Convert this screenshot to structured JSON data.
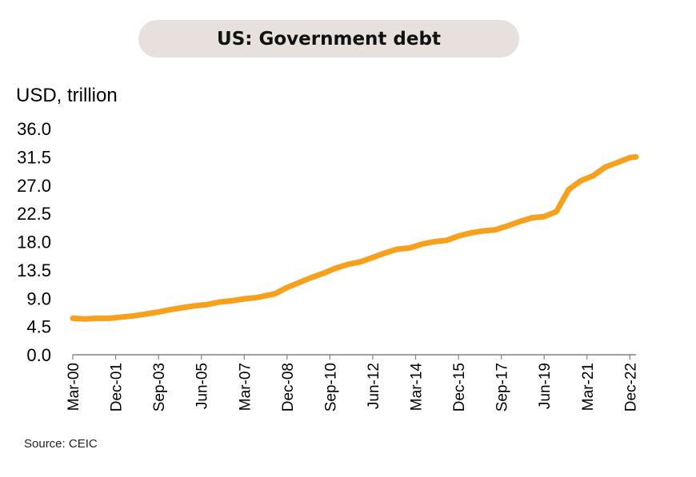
{
  "title": "US: Government debt",
  "unit_label": "USD, trillion",
  "source": "Source: CEIC",
  "colors": {
    "line": "#f7a01e",
    "axis": "#808080",
    "title_bg": "#e8e0dd"
  },
  "chart_data": {
    "type": "line",
    "title": "US: Government debt",
    "ylabel": "USD, trillion",
    "xlabel": "",
    "ylim": [
      0,
      36
    ],
    "yticks": [
      "0.0",
      "4.5",
      "9.0",
      "13.5",
      "18.0",
      "22.5",
      "27.0",
      "31.5",
      "36.0"
    ],
    "xticks": [
      "Mar-00",
      "Dec-01",
      "Sep-03",
      "Jun-05",
      "Mar-07",
      "Dec-08",
      "Sep-10",
      "Jun-12",
      "Mar-14",
      "Dec-15",
      "Sep-17",
      "Jun-19",
      "Mar-21",
      "Dec-22"
    ],
    "grid": false,
    "legend": "none",
    "series": [
      {
        "x": [
          "Mar-00",
          "Sep-00",
          "Mar-01",
          "Sep-01",
          "Mar-02",
          "Sep-02",
          "Mar-03",
          "Sep-03",
          "Mar-04",
          "Sep-04",
          "Mar-05",
          "Sep-05",
          "Mar-06",
          "Sep-06",
          "Mar-07",
          "Sep-07",
          "Mar-08",
          "Jun-08",
          "Dec-08",
          "Jun-09",
          "Dec-09",
          "Jun-10",
          "Dec-10",
          "Jun-11",
          "Dec-11",
          "Jun-12",
          "Dec-12",
          "Jun-13",
          "Dec-13",
          "Jun-14",
          "Dec-14",
          "Jun-15",
          "Dec-15",
          "Jun-16",
          "Dec-16",
          "Jun-17",
          "Dec-17",
          "Jun-18",
          "Dec-18",
          "Jun-19",
          "Dec-19",
          "Jun-20",
          "Dec-20",
          "Jun-21",
          "Dec-21",
          "Jun-22",
          "Dec-22",
          "Mar-23"
        ],
        "values": [
          5.8,
          5.7,
          5.8,
          5.8,
          6.0,
          6.2,
          6.5,
          6.8,
          7.2,
          7.5,
          7.8,
          8.0,
          8.4,
          8.6,
          8.9,
          9.1,
          9.5,
          9.7,
          10.7,
          11.5,
          12.3,
          13.0,
          13.8,
          14.4,
          14.8,
          15.5,
          16.2,
          16.8,
          17.0,
          17.6,
          18.0,
          18.2,
          18.9,
          19.4,
          19.7,
          19.9,
          20.5,
          21.2,
          21.8,
          22.0,
          22.8,
          26.3,
          27.7,
          28.5,
          29.9,
          30.6,
          31.4,
          31.5
        ]
      }
    ]
  }
}
